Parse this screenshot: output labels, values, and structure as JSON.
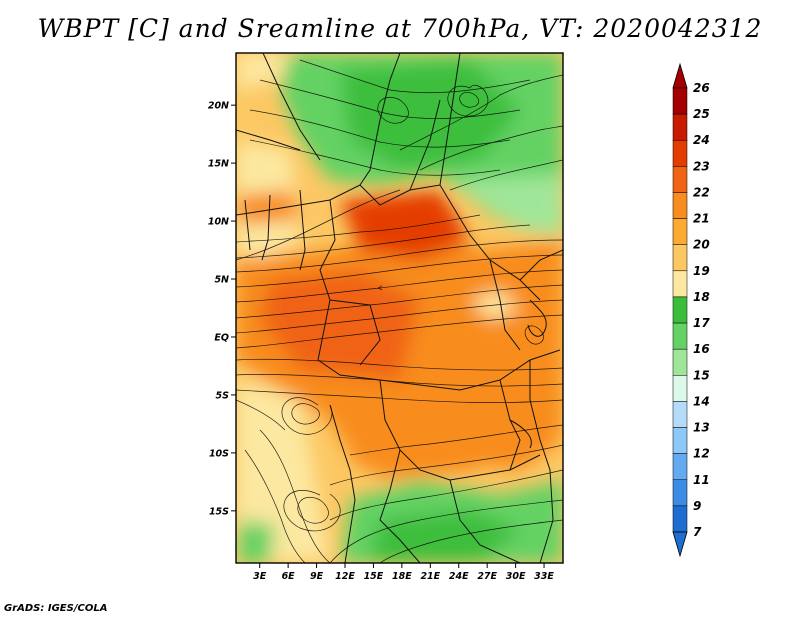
{
  "title": "WBPT [C] and Sreamline at 700hPa, VT: 2020042312",
  "footer": "GrADS: IGES/COLA",
  "map": {
    "region": "Central / Equatorial Africa",
    "lat_labels": [
      "20N",
      "15N",
      "10N",
      "5N",
      "EQ",
      "5S",
      "10S",
      "15S"
    ],
    "lat_values": [
      20,
      15,
      10,
      5,
      0,
      -5,
      -10,
      -15
    ],
    "lon_labels": [
      "3E",
      "6E",
      "9E",
      "12E",
      "15E",
      "18E",
      "21E",
      "24E",
      "27E",
      "30E",
      "33E"
    ],
    "lon_values": [
      3,
      6,
      9,
      12,
      15,
      18,
      21,
      24,
      27,
      30,
      33
    ],
    "lat_range": [
      -19.5,
      24.5
    ],
    "lon_range": [
      0.5,
      35
    ]
  },
  "colorbar": {
    "labels": [
      "26",
      "25",
      "24",
      "23",
      "22",
      "21",
      "20",
      "19",
      "18",
      "17",
      "16",
      "15",
      "14",
      "13",
      "12",
      "11",
      "9",
      "7"
    ],
    "colors": [
      "#a50000",
      "#c81c00",
      "#e43c00",
      "#f06414",
      "#f88c1e",
      "#fcaa32",
      "#fcc864",
      "#fce8a0",
      "#3cbe3c",
      "#64d264",
      "#a0e69a",
      "#dcf8e8",
      "#b4dcfa",
      "#8cc8f8",
      "#64aaf0",
      "#3c8ce6",
      "#1e6ed2"
    ],
    "top_arrow_color": "#a50000",
    "bottom_arrow_color": "#1e6ed2"
  }
}
